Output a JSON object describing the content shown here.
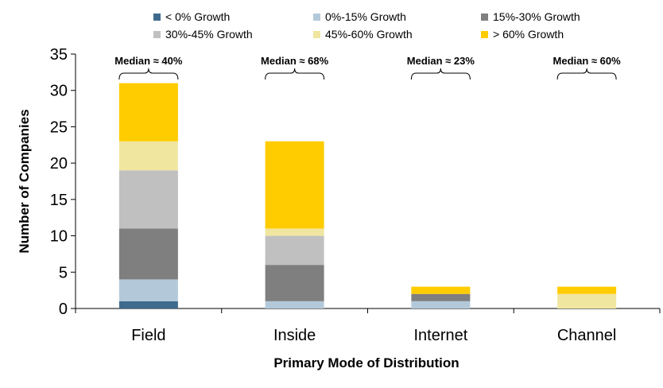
{
  "chart_data": {
    "type": "bar",
    "stacked": true,
    "categories": [
      "Field",
      "Inside",
      "Internet",
      "Channel"
    ],
    "series": [
      {
        "name": "< 0% Growth",
        "color": "#3e6a8e",
        "values": [
          1,
          0,
          0,
          0
        ]
      },
      {
        "name": "0%-15% Growth",
        "color": "#b3c9da",
        "values": [
          3,
          1,
          1,
          0
        ]
      },
      {
        "name": "15%-30% Growth",
        "color": "#7f7f7f",
        "values": [
          7,
          5,
          1,
          0
        ]
      },
      {
        "name": "30%-45% Growth",
        "color": "#c0c0c0",
        "values": [
          8,
          4,
          0,
          0
        ]
      },
      {
        "name": "45%-60% Growth",
        "color": "#f0e6a0",
        "values": [
          4,
          1,
          0,
          2
        ]
      },
      {
        "name": "> 60% Growth",
        "color": "#ffcc00",
        "values": [
          8,
          12,
          1,
          1
        ]
      }
    ],
    "annotations": [
      "Median ≈ 40%",
      "Median ≈ 68%",
      "Median ≈ 23%",
      "Median ≈ 60%"
    ],
    "xlabel": "Primary Mode of Distribution",
    "ylabel": "Number of Companies",
    "ylim": [
      0,
      35
    ],
    "yticks": [
      0,
      5,
      10,
      15,
      20,
      25,
      30,
      35
    ],
    "grid": false,
    "legend_position": "top"
  }
}
